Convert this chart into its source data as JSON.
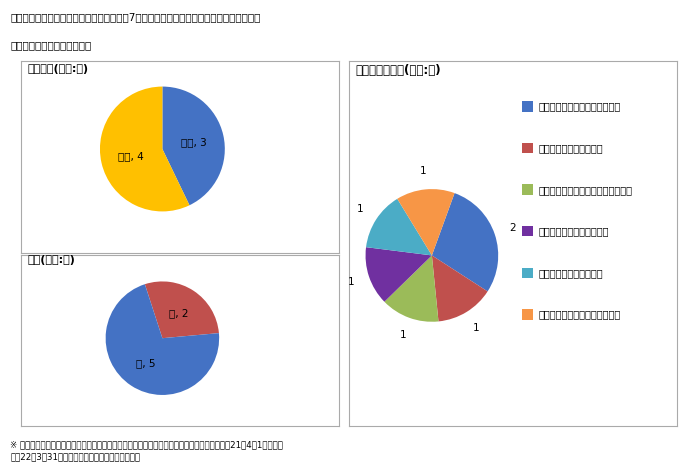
{
  "title_main": "イ　国家公務員採用Ｉ種試験による採用者7人の専門区分、出身大学・学部、性別の内訳",
  "subtitle": "（ｉ）事務系区分（計７人）",
  "footnote": "※ 国家公務員採用Ｉ種試験（行政、法律又は経済に限る。）の採用候補者名簿の中から、平成21年4月1日から平\n　成22年3月31日までの間に採用した一般職の職員",
  "senmon_title": "専門区分(単位:人)",
  "senmon_labels": [
    "法律",
    "経済"
  ],
  "senmon_values": [
    3,
    4
  ],
  "senmon_colors": [
    "#4472C4",
    "#FFC000"
  ],
  "seibetsu_title": "性別(単位:人)",
  "seibetsu_labels": [
    "女",
    "男"
  ],
  "seibetsu_values": [
    2,
    5
  ],
  "seibetsu_colors": [
    "#C0504D",
    "#4472C4"
  ],
  "daigaku_title": "出身大学・学部(単位:人)",
  "daigaku_labels": [
    "東京大学公共政策大学院（２）",
    "東京大学経済学部（１）",
    "東京大学大学院経済学研究科（１）",
    "東京大学法科大学院（１）",
    "一橋大学経済学部（１）",
    "早稲田大学政治経済学部（１）"
  ],
  "daigaku_values": [
    2,
    1,
    1,
    1,
    1,
    1
  ],
  "daigaku_colors": [
    "#4472C4",
    "#C0504D",
    "#9BBB59",
    "#7030A0",
    "#4BACC6",
    "#F79646"
  ],
  "background_color": "#FFFFFF",
  "border_color": "#AAAAAA"
}
